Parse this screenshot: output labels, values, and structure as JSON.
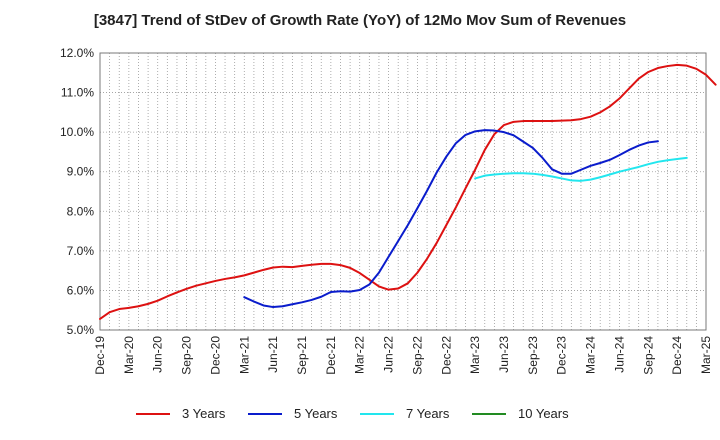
{
  "chart_data": {
    "type": "line",
    "title": "[3847]  Trend of StDev of Growth Rate (YoY) of 12Mo Mov Sum of Revenues",
    "xlabel": "",
    "ylabel": "",
    "ylim": [
      5.0,
      12.0
    ],
    "yticks": [
      "5.0%",
      "6.0%",
      "7.0%",
      "8.0%",
      "9.0%",
      "10.0%",
      "11.0%",
      "12.0%"
    ],
    "xticks": [
      "Dec-19",
      "Mar-20",
      "Jun-20",
      "Sep-20",
      "Dec-20",
      "Mar-21",
      "Jun-21",
      "Sep-21",
      "Dec-21",
      "Mar-22",
      "Jun-22",
      "Sep-22",
      "Dec-22",
      "Mar-23",
      "Jun-23",
      "Sep-23",
      "Dec-23",
      "Mar-24",
      "Jun-24",
      "Sep-24",
      "Dec-24",
      "Mar-25"
    ],
    "x_start": "Dec-19",
    "x_unit": "months since Dec-19",
    "grid": true,
    "legend_position": "bottom",
    "series": [
      {
        "name": "3 Years",
        "color": "#dd1111",
        "start_month": 0,
        "values": [
          5.28,
          5.45,
          5.53,
          5.56,
          5.6,
          5.66,
          5.74,
          5.85,
          5.95,
          6.04,
          6.12,
          6.18,
          6.24,
          6.29,
          6.33,
          6.38,
          6.45,
          6.52,
          6.58,
          6.6,
          6.59,
          6.62,
          6.65,
          6.67,
          6.67,
          6.64,
          6.57,
          6.44,
          6.27,
          6.1,
          6.02,
          6.05,
          6.18,
          6.45,
          6.8,
          7.2,
          7.65,
          8.1,
          8.58,
          9.05,
          9.55,
          9.95,
          10.18,
          10.26,
          10.28,
          10.28,
          10.28,
          10.28,
          10.29,
          10.3,
          10.33,
          10.39,
          10.5,
          10.65,
          10.85,
          11.1,
          11.35,
          11.52,
          11.62,
          11.67,
          11.7,
          11.68,
          11.6,
          11.45,
          11.2
        ]
      },
      {
        "name": "5 Years",
        "color": "#0a1ccc",
        "start_month": 15,
        "values": [
          5.83,
          5.72,
          5.62,
          5.58,
          5.6,
          5.65,
          5.7,
          5.76,
          5.84,
          5.96,
          5.98,
          5.97,
          6.01,
          6.15,
          6.45,
          6.85,
          7.25,
          7.65,
          8.08,
          8.52,
          8.98,
          9.38,
          9.72,
          9.93,
          10.02,
          10.05,
          10.04,
          10.0,
          9.92,
          9.76,
          9.6,
          9.35,
          9.06,
          8.95,
          8.95,
          9.05,
          9.15,
          9.22,
          9.3,
          9.42,
          9.55,
          9.66,
          9.74,
          9.77
        ]
      },
      {
        "name": "7 Years",
        "color": "#22e6ee",
        "start_month": 39,
        "values": [
          8.83,
          8.9,
          8.93,
          8.95,
          8.96,
          8.96,
          8.95,
          8.92,
          8.88,
          8.83,
          8.78,
          8.77,
          8.8,
          8.86,
          8.93,
          9.0,
          9.06,
          9.12,
          9.19,
          9.25,
          9.29,
          9.32,
          9.35
        ]
      },
      {
        "name": "10 Years",
        "color": "#228b22",
        "start_month": 0,
        "values": []
      }
    ]
  }
}
